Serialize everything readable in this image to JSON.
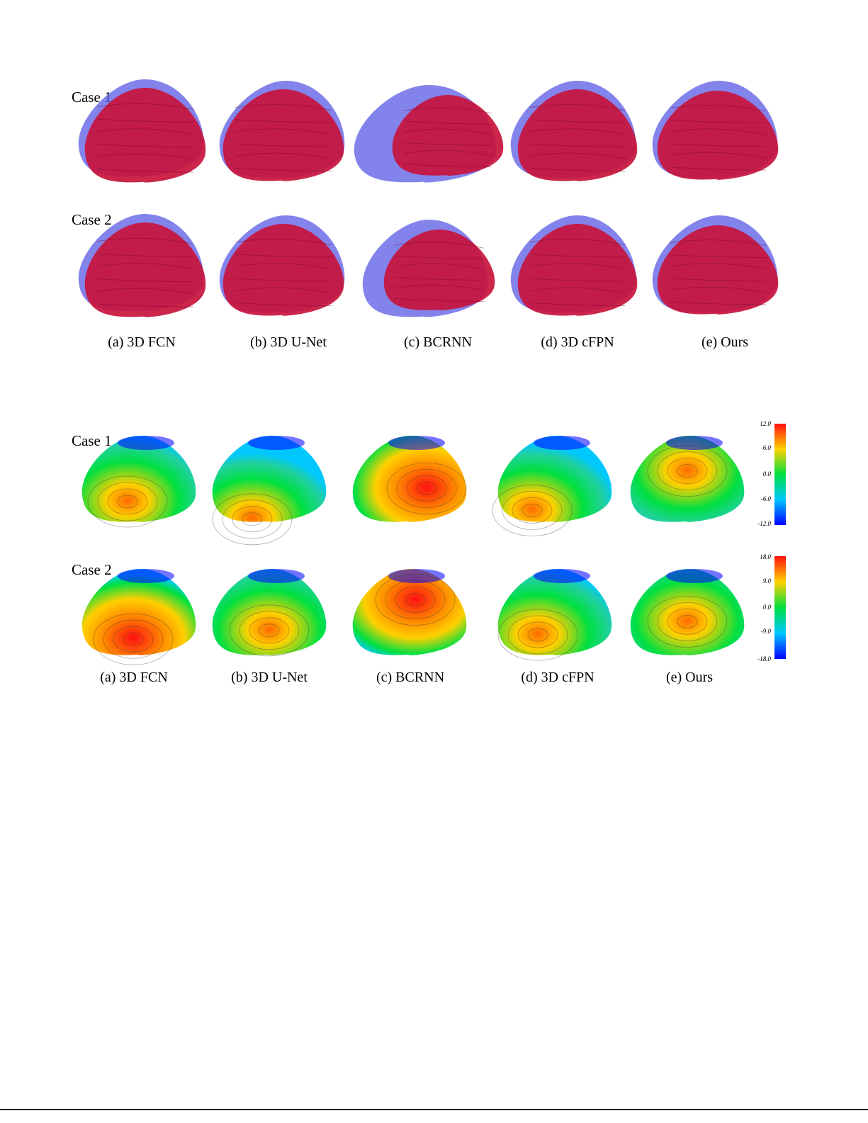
{
  "figure1": {
    "rows": [
      {
        "label": "Case 1"
      },
      {
        "label": "Case 2"
      }
    ],
    "captions": [
      "(a) 3D FCN",
      "(b) 3D U-Net",
      "(c) BCRNN",
      "(d) 3D cFPN",
      "(e) Ours"
    ],
    "colors": {
      "ground_truth": "#5a5ae6",
      "prediction": "#c8143c"
    }
  },
  "figure2": {
    "rows": [
      {
        "label": "Case 1",
        "colorbar_ticks": [
          "12.0",
          "6.0",
          "0.0",
          "-6.0",
          "-12.0"
        ]
      },
      {
        "label": "Case 2",
        "colorbar_ticks": [
          "18.0",
          "9.0",
          "0.0",
          "-9.0",
          "-18.0"
        ]
      }
    ],
    "captions": [
      "(a) 3D FCN",
      "(b) 3D U-Net",
      "(c) BCRNN",
      "(d) 3D cFPN",
      "(e) Ours"
    ],
    "colormap": [
      "#0000ff",
      "#00c8ff",
      "#00e040",
      "#ffd000",
      "#ff1010"
    ]
  }
}
